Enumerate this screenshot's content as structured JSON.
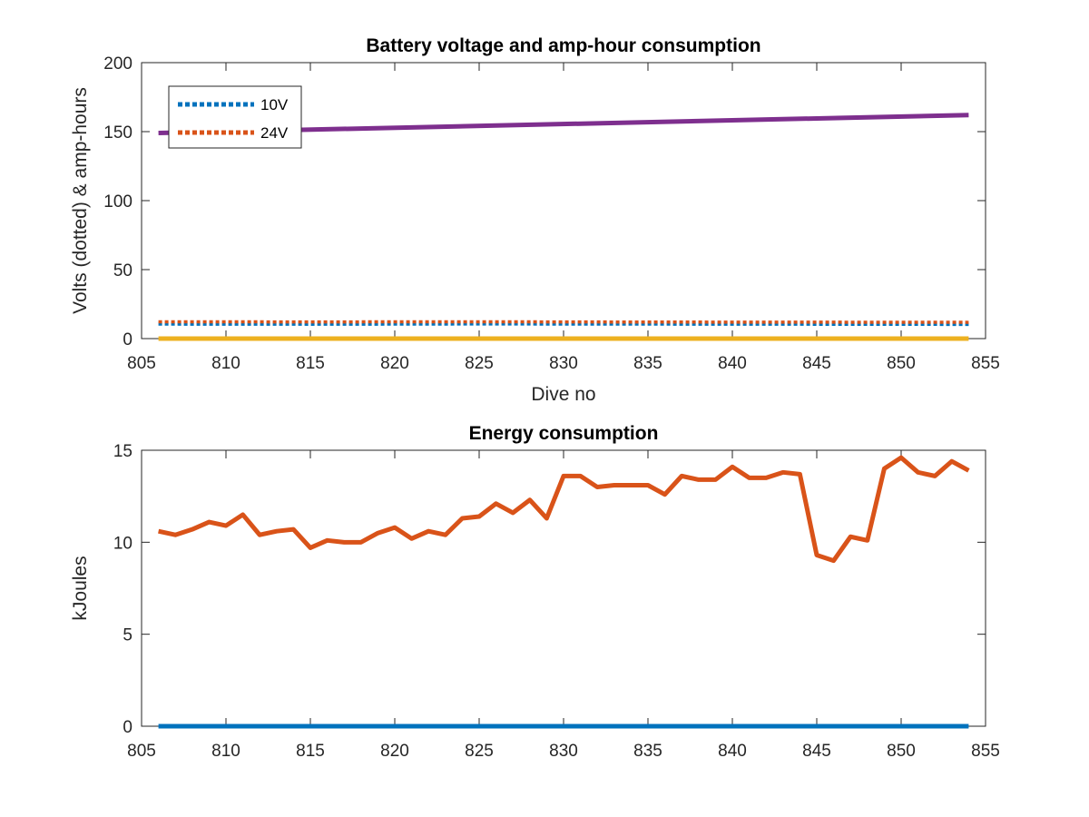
{
  "chart_data": [
    {
      "type": "line",
      "title": "Battery voltage and amp-hour consumption",
      "xlabel": "Dive no",
      "ylabel": "Volts (dotted) & amp-hours",
      "xlim": [
        805,
        855
      ],
      "ylim": [
        0,
        200
      ],
      "xticks": [
        805,
        810,
        815,
        820,
        825,
        830,
        835,
        840,
        845,
        850,
        855
      ],
      "yticks": [
        0,
        50,
        100,
        150,
        200
      ],
      "grid": false,
      "legend_position": "top-left",
      "series": [
        {
          "name": "10V",
          "style": "dotted",
          "color": "#0072BD",
          "x": [
            806,
            815,
            825,
            835,
            845,
            854
          ],
          "y": [
            10.5,
            10.4,
            10.6,
            10.5,
            10.4,
            10.3
          ]
        },
        {
          "name": "24V",
          "style": "dotted",
          "color": "#D95319",
          "x": [
            806,
            815,
            825,
            835,
            845,
            854
          ],
          "y": [
            12.2,
            12.1,
            12.2,
            12.0,
            11.9,
            11.8
          ]
        },
        {
          "style": "solid",
          "color": "#7E2F8E",
          "x": [
            806,
            854
          ],
          "y": [
            149,
            162
          ]
        },
        {
          "style": "solid",
          "color": "#EDB120",
          "x": [
            806,
            854
          ],
          "y": [
            0,
            0
          ]
        }
      ]
    },
    {
      "type": "line",
      "title": "Energy consumption",
      "xlabel": "",
      "ylabel": "kJoules",
      "xlim": [
        805,
        855
      ],
      "ylim": [
        0,
        15
      ],
      "xticks": [
        805,
        810,
        815,
        820,
        825,
        830,
        835,
        840,
        845,
        850,
        855
      ],
      "yticks": [
        0,
        5,
        10,
        15
      ],
      "grid": false,
      "series": [
        {
          "style": "solid",
          "color": "#D95319",
          "x": [
            806,
            807,
            808,
            809,
            810,
            811,
            812,
            813,
            814,
            815,
            816,
            817,
            818,
            819,
            820,
            821,
            822,
            823,
            824,
            825,
            826,
            827,
            828,
            829,
            830,
            831,
            832,
            833,
            834,
            835,
            836,
            837,
            838,
            839,
            840,
            841,
            842,
            843,
            844,
            845,
            846,
            847,
            848,
            849,
            850,
            851,
            852,
            853,
            854
          ],
          "y": [
            10.6,
            10.4,
            10.7,
            11.1,
            10.9,
            11.5,
            10.4,
            10.6,
            10.7,
            9.7,
            10.1,
            10.0,
            10.0,
            10.5,
            10.8,
            10.2,
            10.6,
            10.4,
            11.3,
            11.4,
            12.1,
            11.6,
            12.3,
            11.3,
            13.6,
            13.6,
            13.0,
            13.1,
            13.1,
            13.1,
            12.6,
            13.6,
            13.4,
            13.4,
            14.1,
            13.5,
            13.5,
            13.8,
            13.7,
            9.3,
            9.0,
            10.3,
            10.1,
            14.0,
            14.6,
            13.8,
            13.6,
            14.4,
            13.9
          ]
        },
        {
          "style": "solid",
          "color": "#0072BD",
          "x": [
            806,
            854
          ],
          "y": [
            0,
            0
          ]
        }
      ]
    }
  ]
}
